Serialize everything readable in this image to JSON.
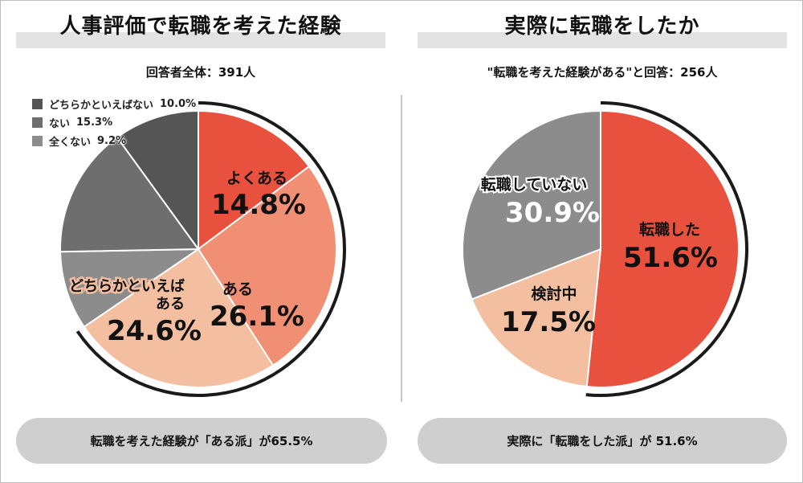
{
  "left": {
    "title": "人事評価で転職を考えた経験",
    "subtitle": "回答者全体：391人",
    "summary": "転職を考えた経験が「ある派」が65.5%",
    "legend": [
      {
        "label": "どちらかといえばない",
        "value": "10.0%",
        "color": "#555555"
      },
      {
        "label": "ない",
        "value": "15.3%",
        "color": "#6e6e6e"
      },
      {
        "label": "全くない",
        "value": "9.2%",
        "color": "#8c8c8c"
      }
    ],
    "labels": {
      "yoku_aru": "よくある",
      "yoku_aru_pct": "14.8%",
      "aru": "ある",
      "aru_pct": "26.1%",
      "dochira_line1": "どちらかといえば",
      "dochira_line2": "ある",
      "dochira_pct": "24.6%"
    }
  },
  "right": {
    "title": "実際に転職をしたか",
    "subtitle": "\"転職を考えた経験がある\"と回答：256人",
    "summary": "実際に「転職をした派」が 51.6%",
    "labels": {
      "tenshoku_shita": "転職した",
      "tenshoku_shita_pct": "51.6%",
      "kentouchuu": "検討中",
      "kentouchuu_pct": "17.5%",
      "shiteinai": "転職していない",
      "shiteinai_pct": "30.9%"
    }
  },
  "chart_data": [
    {
      "type": "pie",
      "title": "人事評価で転職を考えた経験",
      "categories": [
        "よくある",
        "ある",
        "どちらかといえばある",
        "全くない",
        "ない",
        "どちらかといえばない"
      ],
      "values": [
        14.8,
        26.1,
        24.6,
        9.2,
        15.3,
        10.0
      ],
      "colors": [
        "#e8513e",
        "#f08f74",
        "#f4bfa1",
        "#8c8c8c",
        "#6e6e6e",
        "#555555"
      ]
    },
    {
      "type": "pie",
      "title": "実際に転職をしたか",
      "categories": [
        "転職した",
        "検討中",
        "転職していない"
      ],
      "values": [
        51.6,
        17.5,
        30.9
      ],
      "colors": [
        "#e8513e",
        "#f4bfa1",
        "#8c8c8c"
      ]
    }
  ]
}
